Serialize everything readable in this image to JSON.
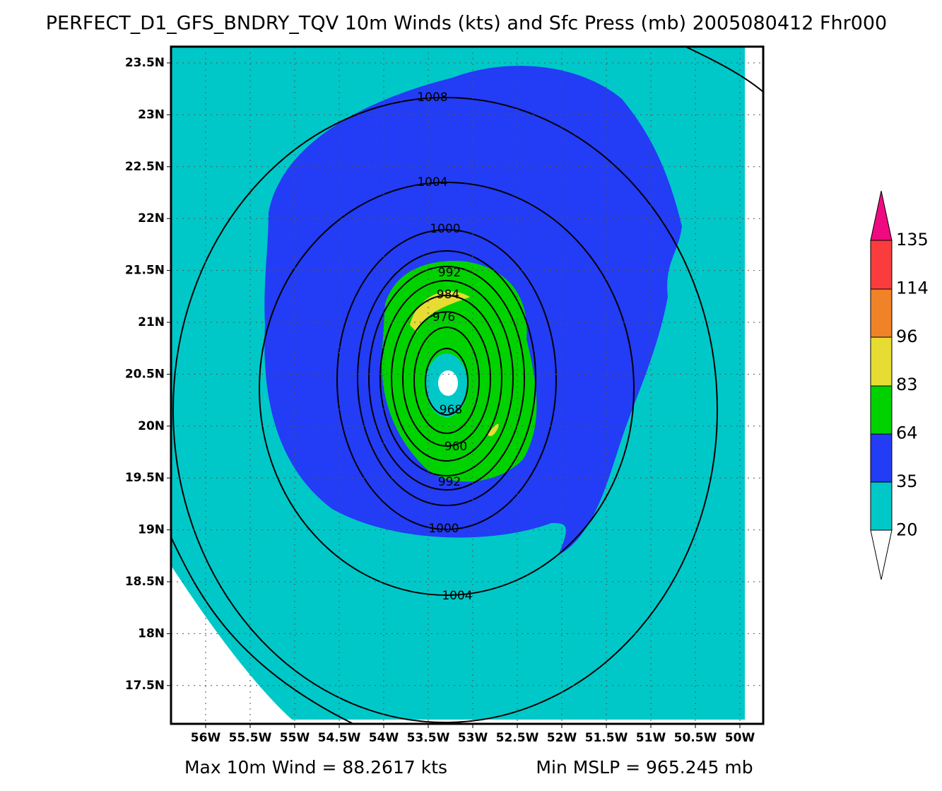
{
  "title": "PERFECT_D1_GFS_BNDRY_TQV 10m Winds (kts) and Sfc Press (mb) 2005080412 Fhr000",
  "lat_labels": [
    "23.5N",
    "23N",
    "22.5N",
    "22N",
    "21.5N",
    "21N",
    "20.5N",
    "20N",
    "19.5N",
    "19N",
    "18.5N",
    "18N",
    "17.5N"
  ],
  "lon_labels": [
    "56W",
    "55.5W",
    "55W",
    "54.5W",
    "54W",
    "53.5W",
    "53W",
    "52.5W",
    "52W",
    "51.5W",
    "51W",
    "50.5W",
    "50W"
  ],
  "contour_labels": [
    "1008",
    "1004",
    "1000",
    "992",
    "984",
    "976",
    "968",
    "960",
    "992",
    "1000",
    "1004"
  ],
  "colorbar_labels": [
    "135",
    "114",
    "96",
    "83",
    "64",
    "35",
    "20"
  ],
  "footer": {
    "max_wind": "Max 10m Wind = 88.2617 kts",
    "min_mslp": "Min MSLP = 965.245 mb"
  }
}
